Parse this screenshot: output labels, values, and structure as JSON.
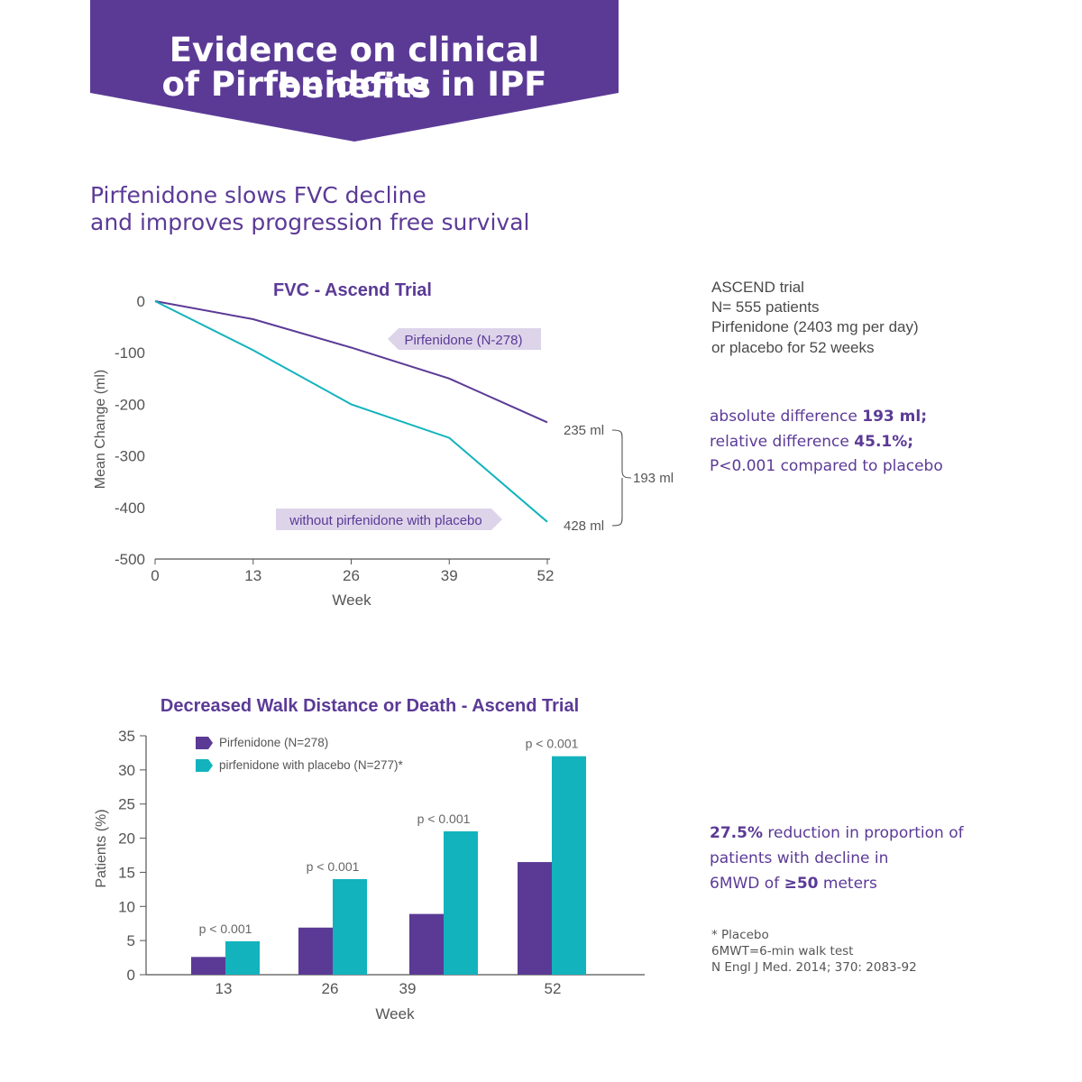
{
  "banner": {
    "title_line1": "Evidence on clinical benefits",
    "title_line2": "of Pirfenidone in IPF",
    "color": "#5b3a96"
  },
  "subtitle": {
    "line1": "Pirfenidone slows FVC decline",
    "line2": "and improves progression free survival"
  },
  "trial_info": {
    "line1": "ASCEND trial",
    "line2": "N= 555 patients",
    "line3": "Pirfenidone (2403 mg per day)",
    "line4": "or placebo for 52 weeks"
  },
  "differences": {
    "abs_prefix": "absolute difference ",
    "abs_value": "193 ml;",
    "rel_prefix": "relative difference ",
    "rel_value": "45.1%;",
    "p_text": "P<0.001 compared to placebo"
  },
  "walk_note": {
    "value": "27.5%",
    "line1_rest": " reduction in proportion of",
    "line2": "patients with decline in",
    "line3_prefix": "6MWD of ",
    "line3_value": "≥50",
    "line3_suffix": " meters"
  },
  "footnotes": {
    "line1": "* Placebo",
    "line2": "6MWT=6-min walk test",
    "line3": "N Engl J Med. 2014; 370: 2083-92"
  },
  "colors": {
    "purple": "#5b3a96",
    "teal": "#12b3bd",
    "label_bg": "#ddd4ea",
    "axis": "#555555"
  },
  "chart_data": [
    {
      "type": "line",
      "title": "FVC - Ascend Trial",
      "xlabel": "Week",
      "ylabel": "Mean Change (ml)",
      "x": [
        0,
        13,
        26,
        39,
        52
      ],
      "xticks": [
        "0",
        "13",
        "26",
        "39",
        "52"
      ],
      "yticks": [
        "0",
        "-100",
        "-200",
        "-300",
        "-400",
        "-500"
      ],
      "ylim": [
        -500,
        0
      ],
      "series": [
        {
          "name": "Pirfenidone (N-278)",
          "values": [
            0,
            -35,
            -90,
            -150,
            -235
          ],
          "color": "#5b3a96"
        },
        {
          "name": "without pirfenidone with placebo",
          "values": [
            0,
            -95,
            -200,
            -265,
            -428
          ],
          "color": "#12b3bd"
        }
      ],
      "annotations": {
        "end1": "235 ml",
        "end2": "428 ml",
        "difference": "193 ml"
      }
    },
    {
      "type": "bar",
      "title": "Decreased Walk Distance or Death - Ascend Trial",
      "xlabel": "Week",
      "ylabel": "Patients (%)",
      "categories": [
        "13",
        "26",
        "39",
        "52"
      ],
      "yticks": [
        "0",
        "5",
        "10",
        "15",
        "20",
        "25",
        "30",
        "35"
      ],
      "ylim": [
        0,
        35
      ],
      "series": [
        {
          "name": "Pirfenidone (N=278)",
          "values": [
            2.6,
            6.9,
            8.9,
            16.5
          ],
          "color": "#5b3a96"
        },
        {
          "name": "pirfenidone with placebo (N=277)*",
          "values": [
            4.9,
            14,
            21,
            32
          ],
          "color": "#12b3bd"
        }
      ],
      "pvalues": [
        "p < 0.001",
        "p < 0.001",
        "p < 0.001",
        "p < 0.001"
      ],
      "legend": "top-left"
    }
  ]
}
